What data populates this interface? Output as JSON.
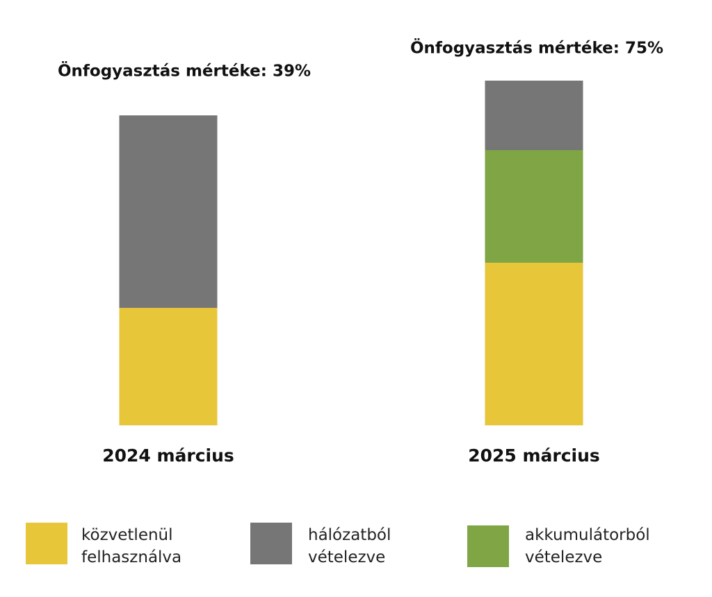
{
  "chart_data": {
    "type": "stacked-bar",
    "annotations": [
      "Önfogyasztás mértéke: 39%",
      "Önfogyasztás mértéke: 75%"
    ],
    "categories": [
      "2024 március",
      "2025 március"
    ],
    "series": [
      {
        "name": "közvetlenül felhasználva",
        "color": "#e8c63a",
        "values": [
          16.9,
          23.4
        ]
      },
      {
        "name": "hálózatból vételezve",
        "color": "#767676",
        "values": [
          27.7,
          10.0
        ]
      },
      {
        "name": "akkumulátorból vételezve",
        "color": "#7fa545",
        "values": [
          null,
          16.2
        ]
      }
    ]
  }
}
